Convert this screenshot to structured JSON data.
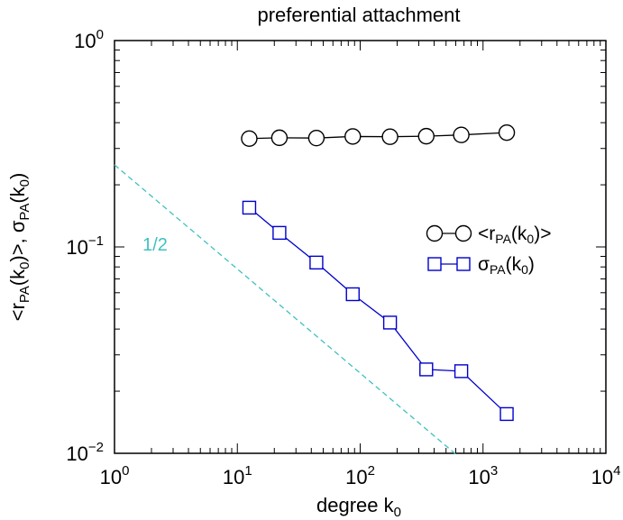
{
  "chart_data": {
    "type": "line",
    "title": "preferential attachment",
    "xlabel": {
      "main": "degree k",
      "sub": "0"
    },
    "ylabel": {
      "parts": [
        {
          "t": "<r"
        },
        {
          "t": "PA",
          "sub": true
        },
        {
          "t": "(k"
        },
        {
          "t": "0",
          "sub": true
        },
        {
          "t": ")>, σ"
        },
        {
          "t": "PA",
          "sub": true
        },
        {
          "t": "(k"
        },
        {
          "t": "0",
          "sub": true
        },
        {
          "t": ")"
        }
      ]
    },
    "xscale": "log",
    "yscale": "log",
    "xlim": [
      1,
      10000
    ],
    "ylim": [
      0.01,
      1
    ],
    "grid": false,
    "legend_position": "right",
    "x_ticks": [
      {
        "value": 1,
        "base": "10",
        "exp": "0"
      },
      {
        "value": 10,
        "base": "10",
        "exp": "1"
      },
      {
        "value": 100,
        "base": "10",
        "exp": "2"
      },
      {
        "value": 1000,
        "base": "10",
        "exp": "3"
      },
      {
        "value": 10000,
        "base": "10",
        "exp": "4"
      }
    ],
    "y_ticks": [
      {
        "value": 0.01,
        "base": "10",
        "exp": "−2"
      },
      {
        "value": 0.1,
        "base": "10",
        "exp": "−1"
      },
      {
        "value": 1,
        "base": "10",
        "exp": "0"
      }
    ],
    "series": [
      {
        "name": "<r_PA(k_0)>",
        "legend_parts": [
          {
            "t": "<r"
          },
          {
            "t": "PA",
            "sub": true
          },
          {
            "t": "(k"
          },
          {
            "t": "0",
            "sub": true
          },
          {
            "t": ")>"
          }
        ],
        "marker": "circle",
        "color": "#000000",
        "x": [
          12.5,
          22,
          44,
          87,
          175,
          345,
          665,
          1560
        ],
        "y": [
          0.335,
          0.338,
          0.337,
          0.343,
          0.342,
          0.344,
          0.349,
          0.358
        ]
      },
      {
        "name": "σ_PA(k_0)",
        "legend_parts": [
          {
            "t": "σ"
          },
          {
            "t": "PA",
            "sub": true
          },
          {
            "t": "(k"
          },
          {
            "t": "0",
            "sub": true
          },
          {
            "t": ")"
          }
        ],
        "marker": "square",
        "color": "#0000cc",
        "x": [
          12.5,
          22,
          44,
          87,
          175,
          345,
          665,
          1560
        ],
        "y": [
          0.155,
          0.117,
          0.084,
          0.059,
          0.043,
          0.0255,
          0.025,
          0.0155
        ]
      }
    ],
    "reference_line": {
      "label": "1/2",
      "color": "#40c0c0",
      "style": "dashed",
      "x": [
        1,
        600
      ],
      "y": [
        0.25,
        0.0099
      ]
    }
  }
}
